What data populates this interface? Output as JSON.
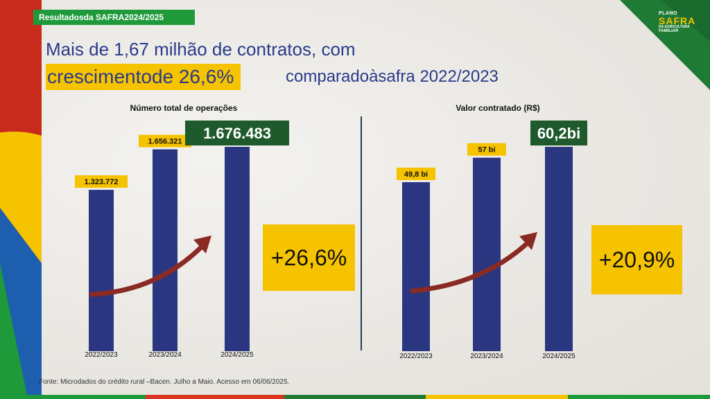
{
  "header": {
    "tag": "Resultadosda SAFRA2024/2025",
    "title_line1": "Mais de 1,67 milhão de contratos, com",
    "title_highlight": "crescimentode 26,6%",
    "title_line2": "comparadoàsafra 2022/2023"
  },
  "logo": {
    "line1": "PLANO",
    "line2": "SAFRA",
    "line3": "DA AGRICULTURA",
    "line4": "FAMILIAR"
  },
  "chart_data": [
    {
      "type": "bar",
      "title": "Número total de operações",
      "categories": [
        "2022/2023",
        "2023/2024",
        "2024/2025"
      ],
      "values": [
        1323772,
        1656321,
        1676483
      ],
      "labels": [
        "1.323.772",
        "1.656.321",
        "1.676.483"
      ],
      "growth_label": "+26,6%",
      "bar_color": "#2b3680"
    },
    {
      "type": "bar",
      "title": "Valor contratado (R$)",
      "categories": [
        "2022/2023",
        "2023/2024",
        "2024/2025"
      ],
      "values": [
        49.8,
        57,
        60.2
      ],
      "labels": [
        "49,8 bi",
        "57 bi",
        "60,2bi"
      ],
      "growth_label": "+20,9%",
      "bar_color": "#2b3680"
    }
  ],
  "footer": {
    "source": "Fonte: Microdados do crédito rural –Bacen. Julho a Maio. Acesso em 06/06/2025."
  }
}
